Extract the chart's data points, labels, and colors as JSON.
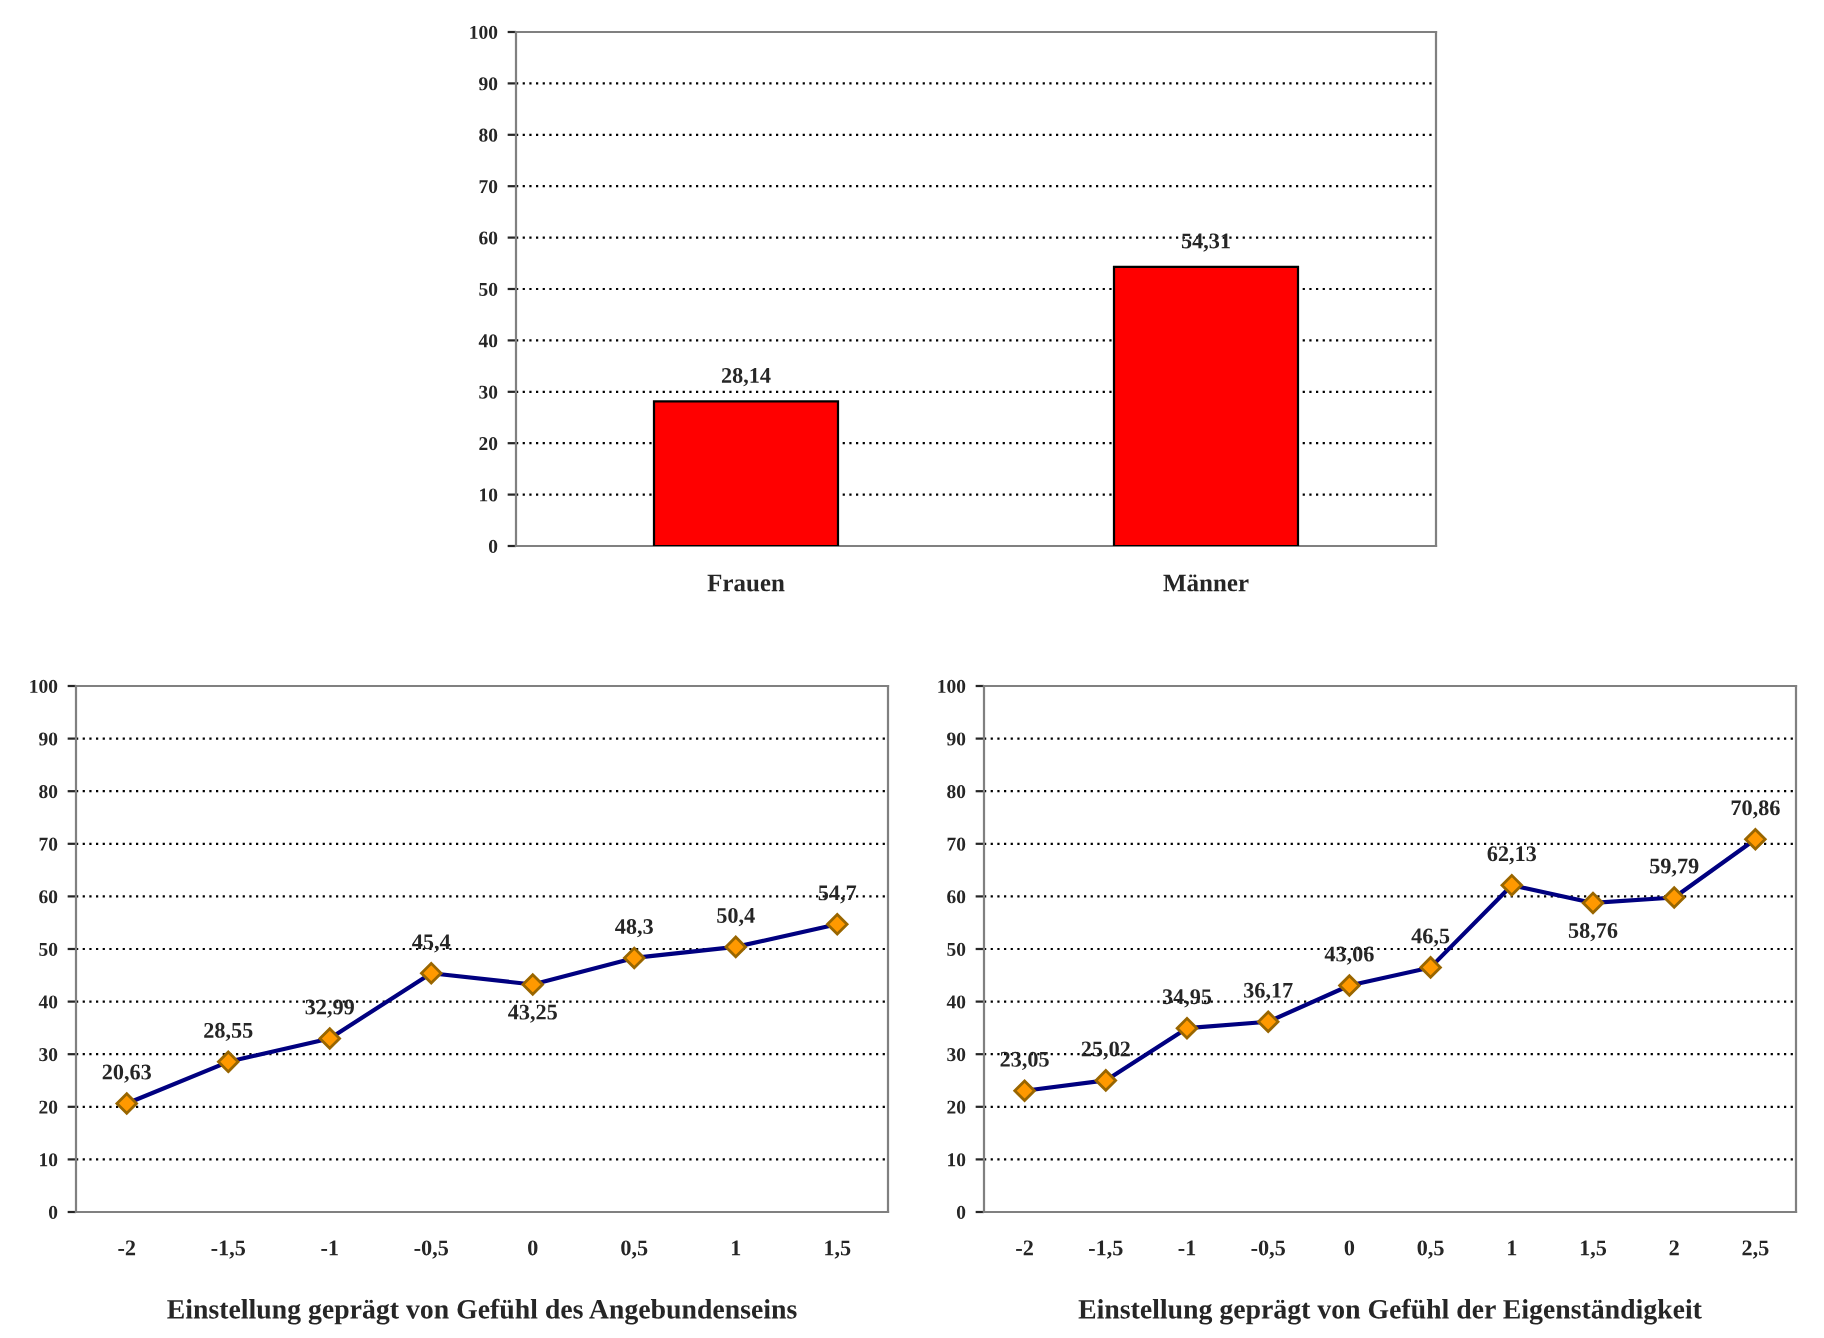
{
  "chart_data": [
    {
      "type": "bar",
      "categories": [
        "Frauen",
        "Männer"
      ],
      "values": [
        28.14,
        54.31
      ],
      "value_labels": [
        "28,14",
        "54,31"
      ],
      "color": "#ff0000",
      "ylim": [
        0,
        100
      ],
      "yticks": [
        0,
        10,
        20,
        30,
        40,
        50,
        60,
        70,
        80,
        90,
        100
      ],
      "grid": "y",
      "legend": false
    },
    {
      "type": "line",
      "xlabel": "Einstellung geprägt von Gefühl des Angebundenseins",
      "categories": [
        "-2",
        "-1,5",
        "-1",
        "-0,5",
        "0",
        "0,5",
        "1",
        "1,5"
      ],
      "series": [
        {
          "color": "#000080",
          "values": [
            20.63,
            28.55,
            32.99,
            45.4,
            43.25,
            48.3,
            50.4,
            54.7
          ],
          "value_labels": [
            "20,63",
            "28,55",
            "32,99",
            "45,4",
            "43,25",
            "48,3",
            "50,4",
            "54,7"
          ]
        }
      ],
      "marker": "diamond",
      "ylim": [
        0,
        100
      ],
      "yticks": [
        0,
        10,
        20,
        30,
        40,
        50,
        60,
        70,
        80,
        90,
        100
      ],
      "grid": "y",
      "legend": false
    },
    {
      "type": "line",
      "xlabel": "Einstellung geprägt von Gefühl der Eigenständigkeit",
      "categories": [
        "-2",
        "-1,5",
        "-1",
        "-0,5",
        "0",
        "0,5",
        "1",
        "1,5",
        "2",
        "2,5"
      ],
      "series": [
        {
          "color": "#000080",
          "values": [
            23.05,
            25.02,
            34.95,
            36.17,
            43.06,
            46.5,
            62.13,
            58.76,
            59.79,
            70.86
          ],
          "value_labels": [
            "23,05",
            "25,02",
            "34,95",
            "36,17",
            "43,06",
            "46,5",
            "62,13",
            "58,76",
            "59,79",
            "70,86"
          ]
        }
      ],
      "marker": "diamond",
      "ylim": [
        0,
        100
      ],
      "yticks": [
        0,
        10,
        20,
        30,
        40,
        50,
        60,
        70,
        80,
        90,
        100
      ],
      "grid": "y",
      "legend": false
    }
  ]
}
